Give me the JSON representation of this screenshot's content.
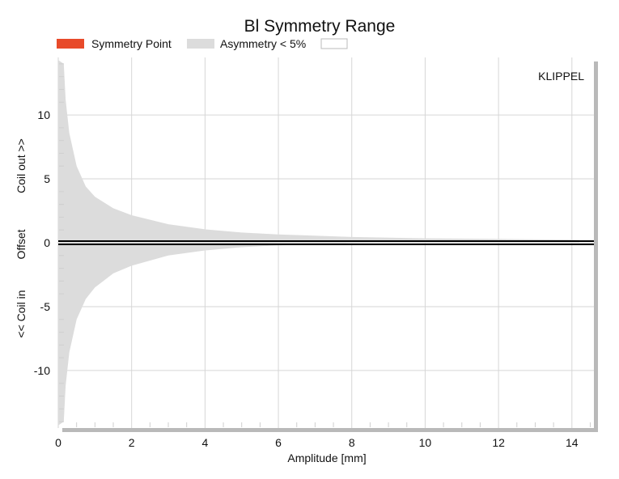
{
  "chart_data": {
    "type": "area",
    "title": "Bl Symmetry Range",
    "legend": [
      {
        "label": "Symmetry Point",
        "color": "#e84a2a"
      },
      {
        "label": "Asymmetry < 5%",
        "color": "#dcdcdc"
      }
    ],
    "xlabel": "Amplitude [mm]",
    "ylabel_parts": [
      "<< Coil in",
      "Offset",
      "Coil out >>"
    ],
    "watermark": "KLIPPEL",
    "xlim": [
      0,
      14.6
    ],
    "ylim": [
      -14.5,
      14.5
    ],
    "x_ticks": [
      0,
      2,
      4,
      6,
      8,
      10,
      12,
      14
    ],
    "y_ticks": [
      10,
      5,
      0,
      -5,
      -10
    ],
    "grid": true,
    "legend_placement": "top",
    "series": [
      {
        "role": "asymmetry-band",
        "x": [
          0.0,
          0.15,
          0.2,
          0.3,
          0.5,
          0.75,
          1.0,
          1.5,
          2.0,
          3.0,
          4.0,
          5.0,
          6.0,
          8.0,
          10.0,
          12.0,
          14.0,
          14.2
        ],
        "upper": [
          14.3,
          14.0,
          11.2,
          8.6,
          6.0,
          4.4,
          3.6,
          2.7,
          2.15,
          1.45,
          1.05,
          0.8,
          0.65,
          0.45,
          0.35,
          0.3,
          0.25,
          0.2
        ],
        "lower": [
          -14.3,
          -14.0,
          -11.2,
          -8.6,
          -6.0,
          -4.4,
          -3.5,
          -2.4,
          -1.8,
          -1.0,
          -0.6,
          -0.35,
          -0.2,
          -0.05,
          0.0,
          0.0,
          0.0,
          0.0
        ]
      },
      {
        "role": "symmetry-point",
        "x": [
          0,
          14.6
        ],
        "y": [
          0,
          0
        ]
      }
    ]
  }
}
